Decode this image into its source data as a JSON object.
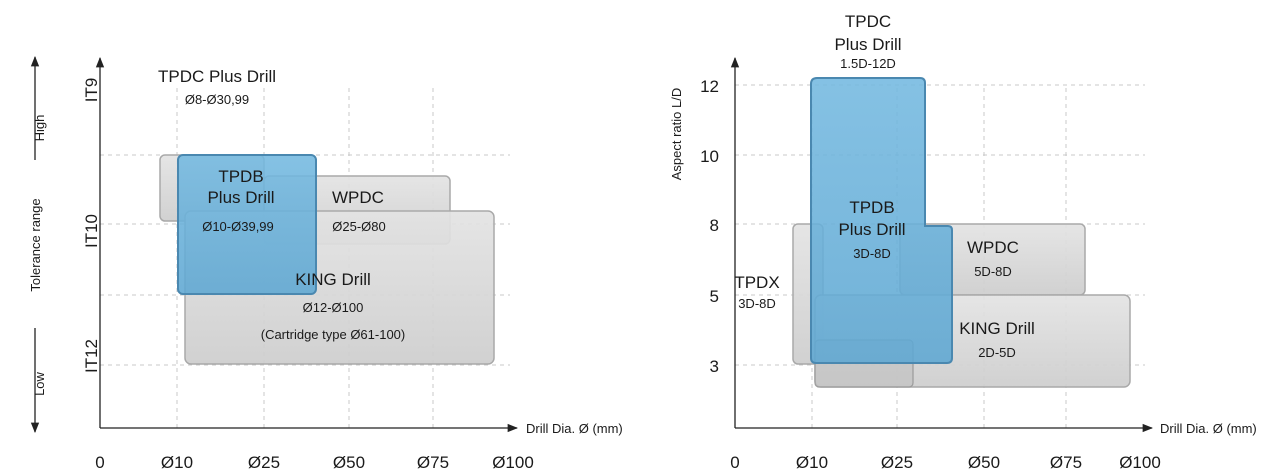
{
  "colors": {
    "grey_fill": "#d6d6d6",
    "grey_stroke": "#a9a9a9",
    "blue_fill": "#6eb4dc",
    "blue_stroke": "#4a88b0",
    "axis": "#222222",
    "grid": "#c8c8c8"
  },
  "chart_data": [
    {
      "type": "range-box",
      "x_label": "Drill Dia. Ø (mm)",
      "x_ticks": [
        "0",
        "Ø10",
        "Ø25",
        "Ø50",
        "Ø75",
        "Ø100"
      ],
      "y_label": "Tolerance range",
      "y_ticks": [
        "IT9",
        "IT10",
        "IT12"
      ],
      "y_side_labels": {
        "high": "High",
        "low": "Low"
      },
      "grid": true,
      "boxes": [
        {
          "name": "TPDC Plus Drill",
          "range": "Ø8-Ø30,99",
          "x": [
            "Ø8",
            "Ø30,99"
          ],
          "color": "grey"
        },
        {
          "name": "WPDC",
          "range": "Ø25-Ø80",
          "x": [
            "Ø25",
            "Ø80"
          ],
          "color": "grey"
        },
        {
          "name": "KING Drill",
          "range": "Ø12-Ø100",
          "note": "(Cartridge type Ø61-100)",
          "x": [
            "Ø12",
            "Ø100"
          ],
          "color": "grey"
        },
        {
          "name_line1": "TPDB",
          "name_line2": "Plus Drill",
          "range": "Ø10-Ø39,99",
          "x": [
            "Ø10",
            "Ø39,99"
          ],
          "color": "blue"
        }
      ]
    },
    {
      "type": "range-box",
      "x_label": "Drill Dia. Ø (mm)",
      "x_ticks": [
        "0",
        "Ø10",
        "Ø25",
        "Ø50",
        "Ø75",
        "Ø100"
      ],
      "y_label": "Aspect ratio L/D",
      "y_ticks": [
        "12",
        "10",
        "8",
        "5",
        "3"
      ],
      "grid": true,
      "boxes": [
        {
          "name_line1": "TPDC",
          "name_line2": "Plus Drill",
          "range": "1.5D-12D",
          "color": "blue"
        },
        {
          "name_line1": "TPDB",
          "name_line2": "Plus Drill",
          "range": "3D-8D",
          "color": "blue"
        },
        {
          "name": "WPDC",
          "range": "5D-8D",
          "color": "grey"
        },
        {
          "name": "TPDX",
          "range": "3D-8D",
          "color": "grey"
        },
        {
          "name": "KING Drill",
          "range": "2D-5D",
          "color": "grey"
        }
      ]
    }
  ]
}
